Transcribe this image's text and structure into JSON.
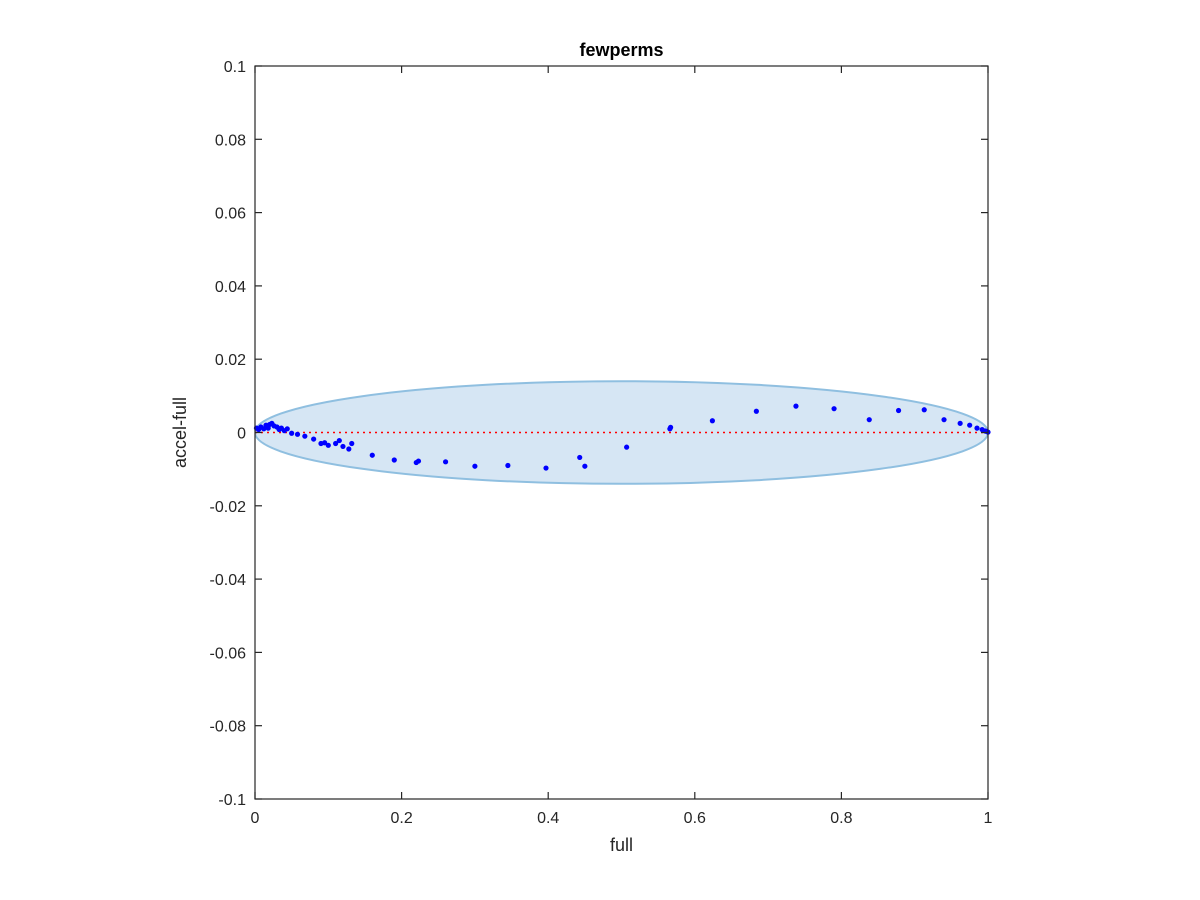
{
  "chart_data": {
    "type": "scatter",
    "title": "fewperms",
    "xlabel": "full",
    "ylabel": "accel-full",
    "xlim": [
      0,
      1
    ],
    "ylim": [
      -0.1,
      0.1
    ],
    "xticks": [
      "0",
      "0.2",
      "0.4",
      "0.6",
      "0.8",
      "1"
    ],
    "yticks": [
      "-0.1",
      "-0.08",
      "-0.06",
      "-0.04",
      "-0.02",
      "0",
      "0.02",
      "0.04",
      "0.06",
      "0.08",
      "0.1"
    ],
    "grid": false,
    "reference_line": {
      "y": 0,
      "style": "dotted",
      "color": "#ff0000"
    },
    "ellipse": {
      "cx": 0.5,
      "cy": 0,
      "rx": 0.5,
      "ry": 0.014,
      "fill": "#d6e6f4",
      "stroke": "#8fbfe0"
    },
    "colors": {
      "points": "#0000ff",
      "axes": "#262626"
    },
    "points": [
      [
        0.002,
        0.0012
      ],
      [
        0.005,
        0.0008
      ],
      [
        0.008,
        0.0015
      ],
      [
        0.012,
        0.001
      ],
      [
        0.015,
        0.002
      ],
      [
        0.018,
        0.0012
      ],
      [
        0.02,
        0.0022
      ],
      [
        0.023,
        0.0025
      ],
      [
        0.026,
        0.0018
      ],
      [
        0.03,
        0.0015
      ],
      [
        0.033,
        0.0008
      ],
      [
        0.036,
        0.0012
      ],
      [
        0.04,
        0.0005
      ],
      [
        0.044,
        0.001
      ],
      [
        0.05,
        -0.0002
      ],
      [
        0.058,
        -0.0005
      ],
      [
        0.068,
        -0.001
      ],
      [
        0.08,
        -0.0018
      ],
      [
        0.09,
        -0.003
      ],
      [
        0.095,
        -0.0028
      ],
      [
        0.1,
        -0.0035
      ],
      [
        0.11,
        -0.003
      ],
      [
        0.115,
        -0.0022
      ],
      [
        0.12,
        -0.0038
      ],
      [
        0.128,
        -0.0045
      ],
      [
        0.132,
        -0.003
      ],
      [
        0.16,
        -0.0062
      ],
      [
        0.19,
        -0.0075
      ],
      [
        0.22,
        -0.0082
      ],
      [
        0.223,
        -0.0078
      ],
      [
        0.26,
        -0.008
      ],
      [
        0.3,
        -0.0092
      ],
      [
        0.345,
        -0.009
      ],
      [
        0.397,
        -0.0097
      ],
      [
        0.443,
        -0.0068
      ],
      [
        0.45,
        -0.0092
      ],
      [
        0.507,
        -0.004
      ],
      [
        0.566,
        0.001
      ],
      [
        0.567,
        0.0014
      ],
      [
        0.624,
        0.0032
      ],
      [
        0.684,
        0.0058
      ],
      [
        0.738,
        0.0072
      ],
      [
        0.79,
        0.0065
      ],
      [
        0.838,
        0.0035
      ],
      [
        0.878,
        0.006
      ],
      [
        0.913,
        0.0062
      ],
      [
        0.94,
        0.0035
      ],
      [
        0.962,
        0.0025
      ],
      [
        0.975,
        0.002
      ],
      [
        0.985,
        0.0012
      ],
      [
        0.992,
        0.0008
      ],
      [
        0.996,
        0.0004
      ],
      [
        0.998,
        0.0003
      ],
      [
        1.0,
        0.0001
      ]
    ]
  }
}
